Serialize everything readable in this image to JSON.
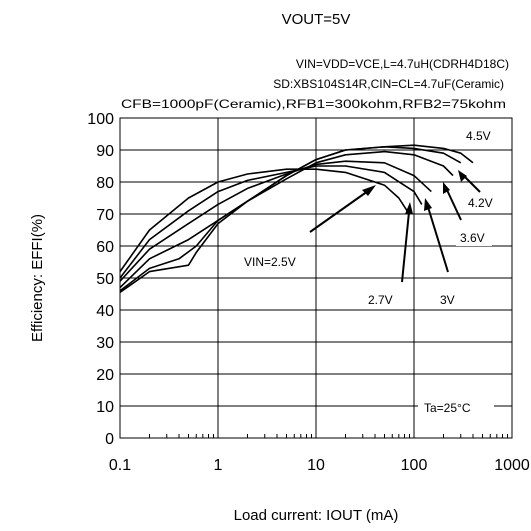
{
  "chart_data": {
    "type": "line",
    "title": "VOUT=5V",
    "conditions": [
      "VIN=VDD=VCE,L=4.7uH(CDRH4D18C)",
      "SD:XBS104S14R,CIN=CL=4.7uF(Ceramic)",
      "CFB=1000pF(Ceramic),RFB1=300kohm,RFB2=75kohm"
    ],
    "ylabel": "Efficiency: EFFI(%)",
    "xlabel": "Load current: IOUT (mA)",
    "x_scale": "log",
    "xlim": [
      0.1,
      1000
    ],
    "ylim": [
      0,
      100
    ],
    "x_ticks": [
      "0.1",
      "1",
      "10",
      "100",
      "1000"
    ],
    "y_ticks": [
      "0",
      "10",
      "20",
      "30",
      "40",
      "50",
      "60",
      "70",
      "80",
      "90",
      "100"
    ],
    "grid": true,
    "annotation": "Ta=25°C",
    "series": [
      {
        "name": "VIN=2.5V",
        "x": [
          0.1,
          0.2,
          0.5,
          1,
          2,
          5,
          10,
          20,
          50,
          70,
          85
        ],
        "y": [
          52,
          65,
          75,
          80,
          82.5,
          84,
          84,
          83,
          79,
          75,
          71
        ]
      },
      {
        "name": "2.7V",
        "x": [
          0.1,
          0.2,
          0.5,
          1,
          2,
          5,
          10,
          20,
          50,
          100,
          120
        ],
        "y": [
          50,
          62,
          71,
          77,
          80.5,
          83,
          85,
          85,
          83,
          77,
          73
        ]
      },
      {
        "name": "3V",
        "x": [
          0.1,
          0.2,
          0.5,
          1,
          2,
          5,
          10,
          20,
          50,
          100,
          150
        ],
        "y": [
          49,
          59,
          67,
          73,
          78,
          82.5,
          85.5,
          86.5,
          86,
          82,
          77
        ]
      },
      {
        "name": "3.6V",
        "x": [
          0.1,
          0.2,
          0.5,
          1,
          2,
          5,
          10,
          20,
          50,
          100,
          200,
          250
        ],
        "y": [
          47,
          56,
          62,
          68,
          74,
          81,
          86,
          88.5,
          89.5,
          88.5,
          85,
          82
        ]
      },
      {
        "name": "4.2V",
        "x": [
          0.1,
          0.2,
          0.4,
          0.6,
          1,
          2,
          5,
          10,
          20,
          50,
          100,
          200,
          300
        ],
        "y": [
          46,
          53,
          56,
          60,
          68,
          74,
          82,
          87,
          90,
          91,
          90.5,
          89,
          86
        ]
      },
      {
        "name": "4.5V",
        "x": [
          0.1,
          0.2,
          0.5,
          0.6,
          1,
          2,
          5,
          10,
          20,
          50,
          100,
          200,
          300,
          400
        ],
        "y": [
          45.5,
          52,
          54,
          58,
          67,
          74,
          82,
          87,
          90,
          91,
          91.5,
          90.5,
          89,
          86
        ]
      }
    ],
    "labels": [
      "4.5V",
      "4.2V",
      "3.6V",
      "3V",
      "2.7V",
      "VIN=2.5V"
    ]
  }
}
